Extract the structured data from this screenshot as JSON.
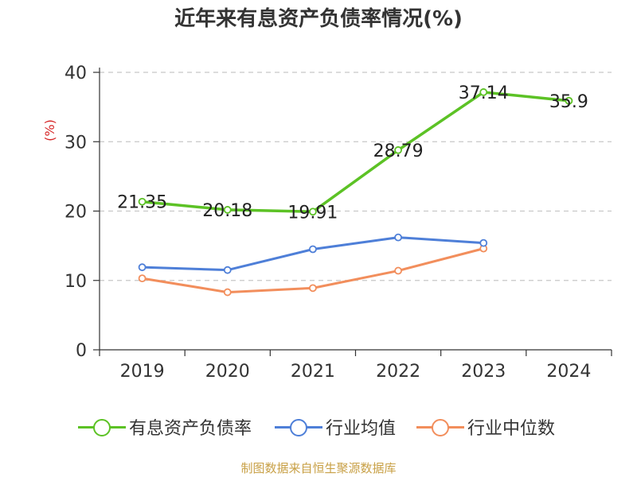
{
  "chart_data": {
    "type": "line",
    "title": "近年来有息资产负债率情况(%)",
    "ylabel": "(%)",
    "xlabel": "",
    "categories": [
      "2019",
      "2020",
      "2021",
      "2022",
      "2023",
      "2024"
    ],
    "ylim": [
      0,
      40
    ],
    "yticks": [
      0,
      10,
      20,
      30,
      40
    ],
    "grid": true,
    "legend_position": "bottom",
    "series": [
      {
        "name": "有息资产负债率",
        "color": "#5cc225",
        "values": [
          21.35,
          20.18,
          19.91,
          28.79,
          37.14,
          35.9
        ],
        "labels": [
          "21.35",
          "20.18",
          "19.91",
          "28.79",
          "37.14",
          "35.9"
        ]
      },
      {
        "name": "行业均值",
        "color": "#4e7fd8",
        "values": [
          11.9,
          11.5,
          14.5,
          16.2,
          15.4,
          null
        ]
      },
      {
        "name": "行业中位数",
        "color": "#f28e5c",
        "values": [
          10.3,
          8.3,
          8.9,
          11.4,
          14.6,
          null
        ]
      }
    ]
  },
  "source": "制图数据来自恒生聚源数据库"
}
